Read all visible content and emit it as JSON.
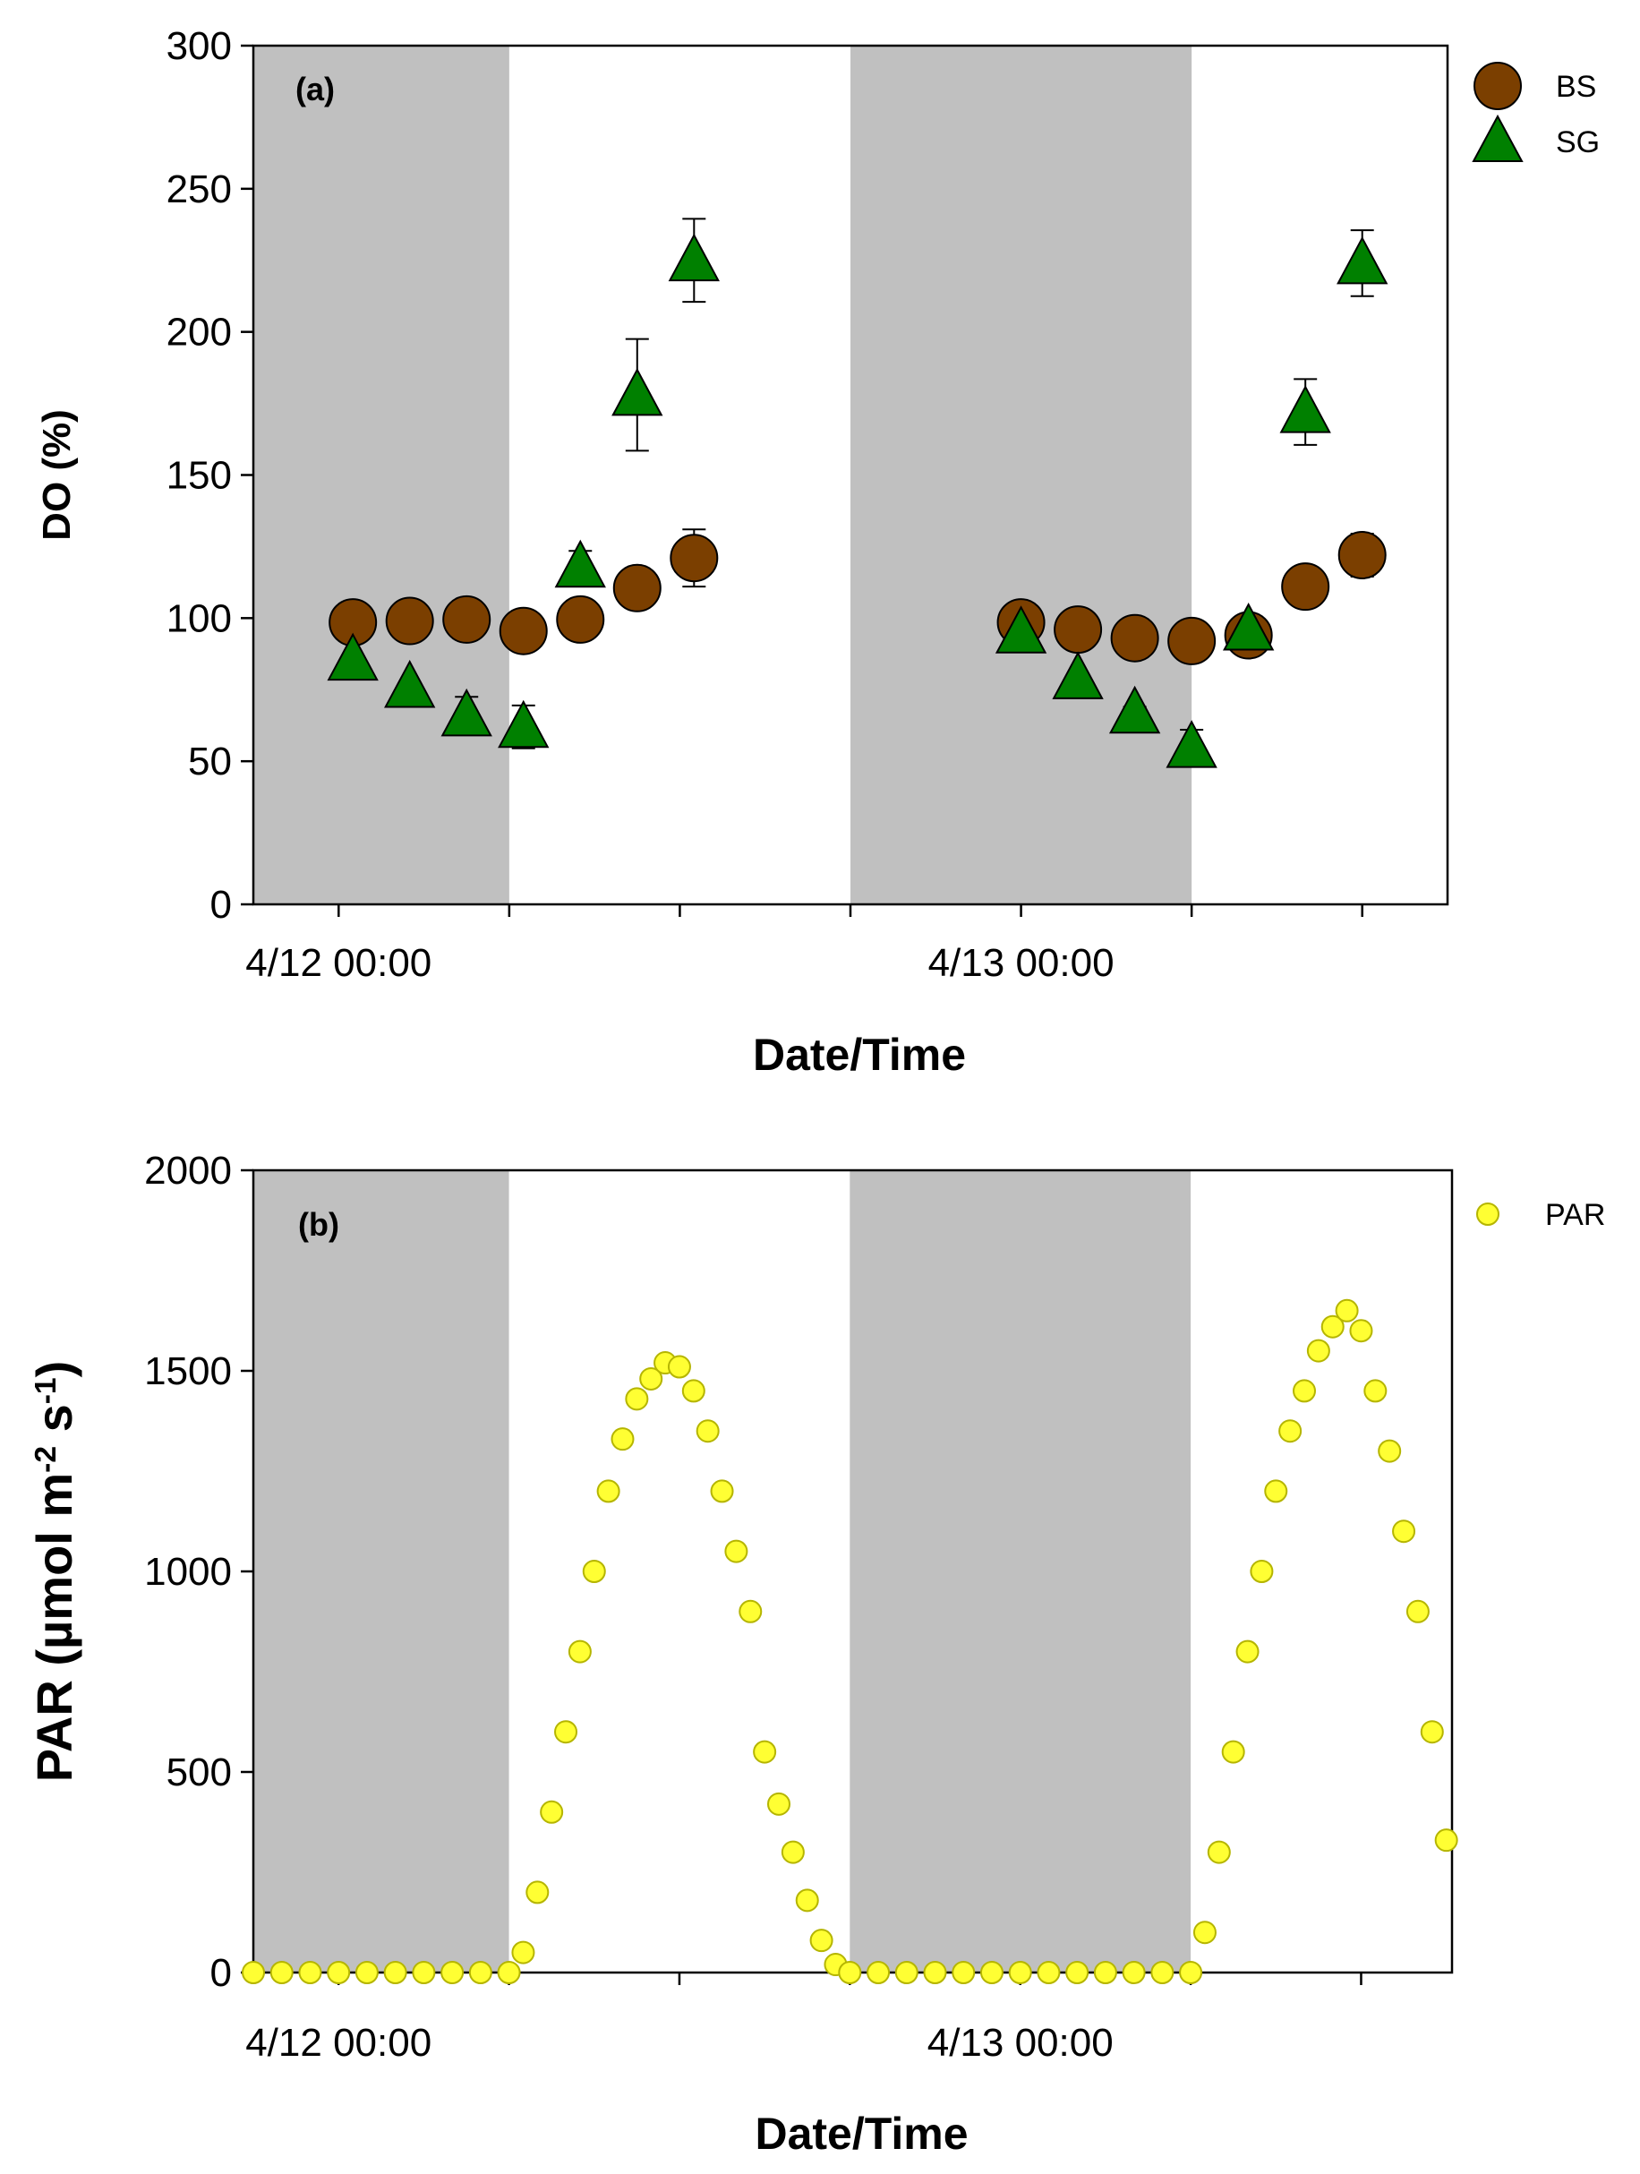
{
  "chart_data": [
    {
      "type": "scatter",
      "panel_label": "(a)",
      "xlabel": "Date/Time",
      "ylabel": "DO (%)",
      "xlim": [
        "4/11 21:00",
        "4/13 15:00"
      ],
      "ylim": [
        0,
        300
      ],
      "yticks": [
        0,
        50,
        100,
        150,
        200,
        250,
        300
      ],
      "xtick_labels": [
        "4/12 00:00",
        "4/13 00:00"
      ],
      "xtick_marks": [
        "4/12 00:00",
        "4/12 06:00",
        "4/12 12:00",
        "4/12 18:00",
        "4/13 00:00",
        "4/13 06:00",
        "4/13 12:00"
      ],
      "shaded_night": [
        [
          "4/11 21:00",
          "4/12 06:00"
        ],
        [
          "4/12 18:00",
          "4/13 06:00"
        ]
      ],
      "shade_color": "#c0c0c0",
      "grid": false,
      "legend_placement": "outside-top-right",
      "series": [
        {
          "name": "BS",
          "marker": "circle",
          "color": "#7b3f00",
          "x": [
            "4/12 00:30",
            "4/12 02:30",
            "4/12 04:30",
            "4/12 06:30",
            "4/12 08:30",
            "4/12 10:30",
            "4/12 12:30",
            "4/13 00:00",
            "4/13 02:00",
            "4/13 04:00",
            "4/13 06:00",
            "4/13 08:00",
            "4/13 10:00",
            "4/13 12:00"
          ],
          "y": [
            98.5,
            99,
            99.5,
            95.5,
            99.5,
            110.5,
            121,
            98.5,
            96,
            93,
            92,
            94,
            111,
            122
          ],
          "err": [
            0,
            0,
            0,
            0,
            0,
            0,
            10,
            0,
            0,
            0,
            0,
            0,
            0,
            7.5
          ]
        },
        {
          "name": "SG",
          "marker": "triangle",
          "color": "#008000",
          "x": [
            "4/12 00:30",
            "4/12 02:30",
            "4/12 04:30",
            "4/12 06:30",
            "4/12 08:30",
            "4/12 10:30",
            "4/12 12:30",
            "4/13 00:00",
            "4/13 02:00",
            "4/13 04:00",
            "4/13 06:00",
            "4/13 08:00",
            "4/13 10:00",
            "4/13 12:00"
          ],
          "y": [
            85.5,
            76,
            66,
            62,
            118,
            178,
            225,
            95,
            79,
            67,
            55,
            96,
            172,
            224
          ],
          "err": [
            0,
            0,
            6.5,
            7.5,
            5.5,
            19.5,
            14.5,
            0,
            0,
            2,
            6,
            0,
            11.5,
            11.5
          ]
        }
      ]
    },
    {
      "type": "scatter",
      "panel_label": "(b)",
      "xlabel": "Date/Time",
      "ylabel": "PAR (µmol m-2 s-1)",
      "ylabel_parts": {
        "main": "PAR (µmol m",
        "sup1": "-2",
        "mid": " s",
        "sup2": "-1",
        "end": ")"
      },
      "xlim": [
        "4/11 21:00",
        "4/13 15:12"
      ],
      "ylim": [
        0,
        2000
      ],
      "yticks": [
        0,
        500,
        1000,
        1500,
        2000
      ],
      "xtick_labels": [
        "4/12 00:00",
        "4/13 00:00"
      ],
      "xtick_marks": [
        "4/12 00:00",
        "4/12 06:00",
        "4/12 12:00",
        "4/12 18:00",
        "4/13 00:00",
        "4/13 06:00",
        "4/13 12:00"
      ],
      "shaded_night": [
        [
          "4/11 21:00",
          "4/12 06:00"
        ],
        [
          "4/12 18:00",
          "4/13 06:00"
        ]
      ],
      "shade_color": "#c0c0c0",
      "grid": false,
      "legend_placement": "outside-top-right",
      "series": [
        {
          "name": "PAR",
          "marker": "circle",
          "color": "#ffff33",
          "edge": "#b5b500",
          "x": [
            "4/11 21:00",
            "4/11 22:00",
            "4/11 23:00",
            "4/12 00:00",
            "4/12 01:00",
            "4/12 02:00",
            "4/12 03:00",
            "4/12 04:00",
            "4/12 05:00",
            "4/12 06:00",
            "4/12 06:30",
            "4/12 07:00",
            "4/12 07:30",
            "4/12 08:00",
            "4/12 08:30",
            "4/12 09:00",
            "4/12 09:30",
            "4/12 10:00",
            "4/12 10:30",
            "4/12 11:00",
            "4/12 11:30",
            "4/12 12:00",
            "4/12 12:30",
            "4/12 13:00",
            "4/12 13:30",
            "4/12 14:00",
            "4/12 14:30",
            "4/12 15:00",
            "4/12 15:30",
            "4/12 16:00",
            "4/12 16:30",
            "4/12 17:00",
            "4/12 17:30",
            "4/12 18:00",
            "4/12 19:00",
            "4/12 20:00",
            "4/12 21:00",
            "4/12 22:00",
            "4/12 23:00",
            "4/13 00:00",
            "4/13 01:00",
            "4/13 02:00",
            "4/13 03:00",
            "4/13 04:00",
            "4/13 05:00",
            "4/13 06:00",
            "4/13 06:30",
            "4/13 07:00",
            "4/13 07:30",
            "4/13 08:00",
            "4/13 08:30",
            "4/13 09:00",
            "4/13 09:30",
            "4/13 10:00",
            "4/13 10:30",
            "4/13 11:00",
            "4/13 11:30",
            "4/13 12:00",
            "4/13 12:30",
            "4/13 13:00",
            "4/13 13:30",
            "4/13 14:00",
            "4/13 14:30",
            "4/13 15:00"
          ],
          "y": [
            0,
            0,
            0,
            0,
            0,
            0,
            0,
            0,
            0,
            0,
            50,
            200,
            400,
            600,
            800,
            1000,
            1200,
            1330,
            1430,
            1480,
            1520,
            1510,
            1450,
            1350,
            1200,
            1050,
            900,
            550,
            420,
            300,
            180,
            80,
            20,
            0,
            0,
            0,
            0,
            0,
            0,
            0,
            0,
            0,
            0,
            0,
            0,
            0,
            100,
            300,
            550,
            800,
            1000,
            1200,
            1350,
            1450,
            1550,
            1610,
            1650,
            1600,
            1450,
            1300,
            1100,
            900,
            600,
            330
          ]
        }
      ]
    }
  ]
}
